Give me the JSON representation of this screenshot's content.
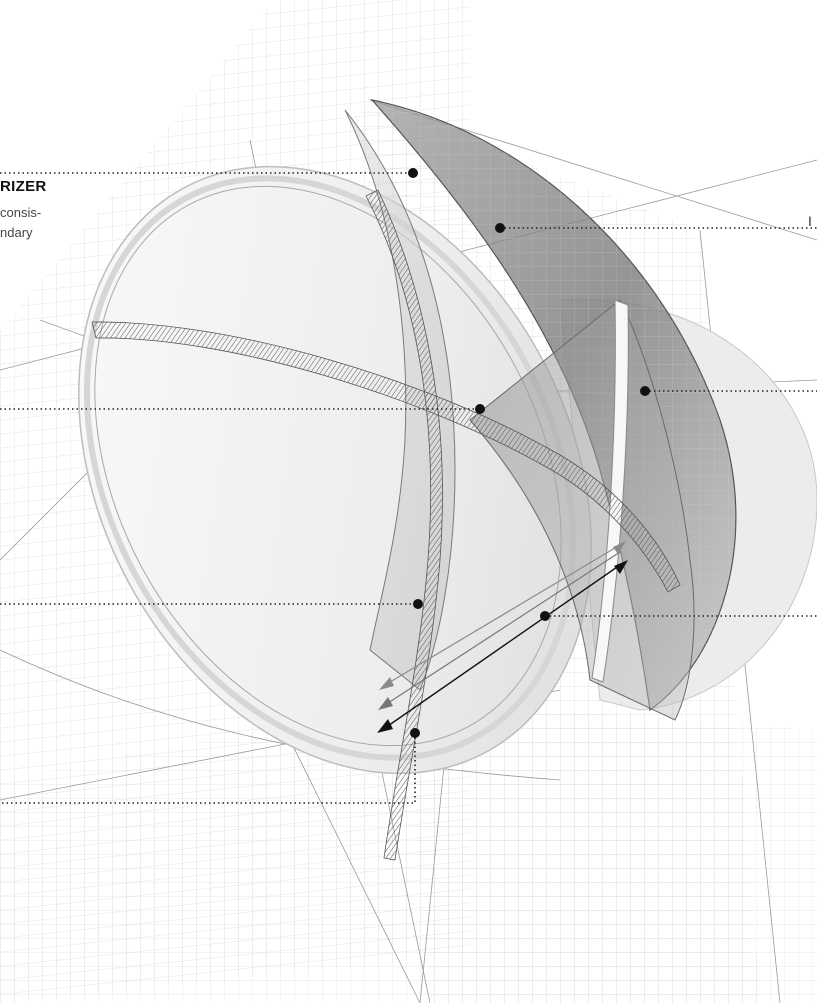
{
  "labels": {
    "left_title": "RIZER",
    "left_line_1": "consis-",
    "left_line_2": "ndary",
    "right_fragment": "I"
  },
  "colors": {
    "line": "#222222",
    "grid": "#c9c9c9",
    "lens_shade": "#8a8a8a",
    "background": "#ffffff"
  }
}
